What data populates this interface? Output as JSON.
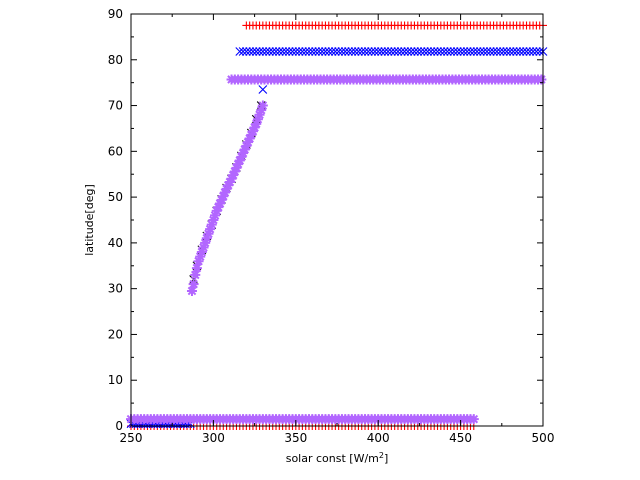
{
  "chart_data": {
    "type": "scatter",
    "title": "",
    "xlabel": "solar const [W/m",
    "xlabel_sup": "2",
    "xlabel_close": "]",
    "ylabel": "latitude[deg]",
    "xlim": [
      250,
      500
    ],
    "ylim": [
      0,
      90
    ],
    "xticks": [
      250,
      300,
      350,
      400,
      450,
      500
    ],
    "yticks": [
      0,
      10,
      20,
      30,
      40,
      50,
      60,
      70,
      80,
      90
    ],
    "grid": false,
    "legend": "none",
    "series": [
      {
        "marker": "+",
        "color": "#ff0000",
        "segments": [
          {
            "x_range": [
              320,
              500
            ],
            "y": 87.5,
            "step": 2
          },
          {
            "x_range": [
              250,
              458
            ],
            "y": 0,
            "step": 2
          }
        ]
      },
      {
        "marker": "x",
        "color": "#0000ff",
        "segments": [
          {
            "x_range": [
              316,
              500
            ],
            "y": 81.8,
            "step": 2
          },
          {
            "x_range": [
              250,
              287
            ],
            "y": 0.5,
            "step": 1.5
          }
        ],
        "points": [
          [
            330,
            73.5
          ]
        ]
      },
      {
        "marker": "x",
        "color": "#000000",
        "points": [
          [
            288,
            32
          ],
          [
            290,
            35
          ],
          [
            293,
            38.5
          ],
          [
            296,
            41.5
          ],
          [
            299,
            44
          ],
          [
            302,
            47
          ],
          [
            305,
            49.5
          ],
          [
            308,
            52
          ],
          [
            311,
            54
          ],
          [
            314,
            56.5
          ],
          [
            317,
            59
          ],
          [
            320,
            61.5
          ],
          [
            323,
            64
          ],
          [
            326,
            67
          ],
          [
            329,
            70
          ]
        ]
      },
      {
        "marker": "*",
        "color": "#b266ff",
        "segments": [
          {
            "x_range": [
              311,
              500
            ],
            "y": 75.7,
            "step": 2
          },
          {
            "x_range": [
              250,
              458
            ],
            "y": 1.5,
            "step": 2
          }
        ],
        "points": [
          [
            287,
            29.5
          ],
          [
            288,
            31
          ],
          [
            289,
            33
          ],
          [
            290,
            34.5
          ],
          [
            291,
            36
          ],
          [
            292,
            37
          ],
          [
            293,
            38
          ],
          [
            294,
            39
          ],
          [
            295,
            40
          ],
          [
            296,
            41
          ],
          [
            297,
            42
          ],
          [
            298,
            43
          ],
          [
            299,
            44
          ],
          [
            300,
            45
          ],
          [
            301,
            46
          ],
          [
            302,
            47
          ],
          [
            303,
            47.8
          ],
          [
            304,
            48.6
          ],
          [
            305,
            49.4
          ],
          [
            306,
            50.2
          ],
          [
            307,
            51
          ],
          [
            308,
            51.8
          ],
          [
            309,
            52.6
          ],
          [
            310,
            53.3
          ],
          [
            311,
            54
          ],
          [
            312,
            54.8
          ],
          [
            313,
            55.6
          ],
          [
            314,
            56.4
          ],
          [
            315,
            57.2
          ],
          [
            316,
            58
          ],
          [
            317,
            58.8
          ],
          [
            318,
            59.6
          ],
          [
            319,
            60.4
          ],
          [
            320,
            61.2
          ],
          [
            321,
            62
          ],
          [
            322,
            62.8
          ],
          [
            323,
            63.6
          ],
          [
            324,
            64.4
          ],
          [
            325,
            65.2
          ],
          [
            326,
            66
          ],
          [
            327,
            67
          ],
          [
            328,
            68
          ],
          [
            329,
            69
          ],
          [
            330,
            70
          ]
        ]
      }
    ]
  }
}
